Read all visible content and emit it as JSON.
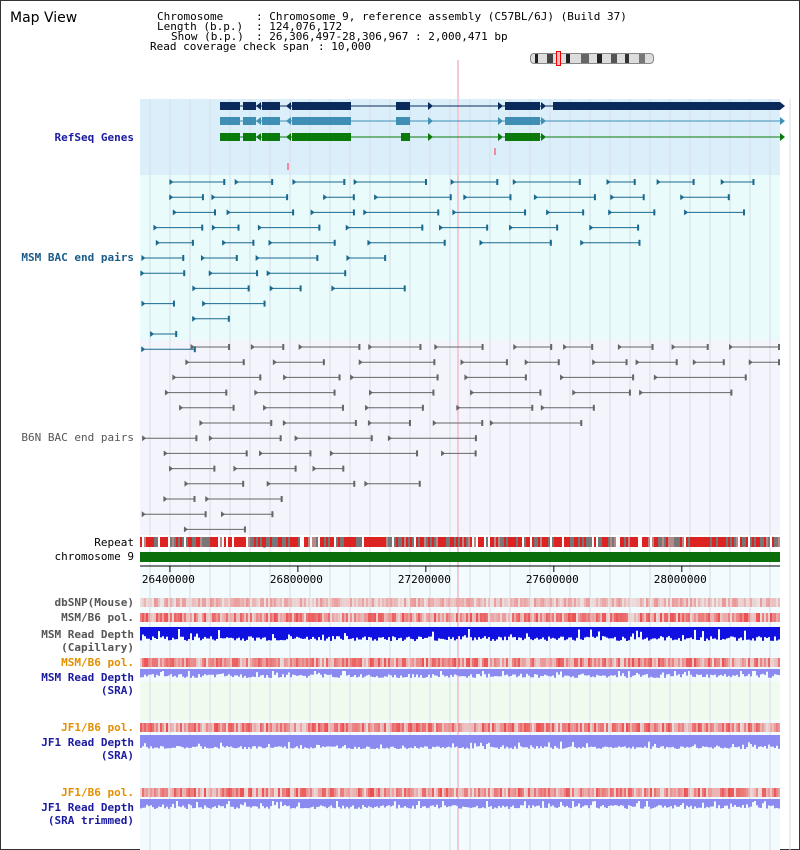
{
  "page": {
    "title": "Map View"
  },
  "info": {
    "chromosome_label": "Chromosome",
    "chromosome_value": "Chromosome 9, reference assembly (C57BL/6J) (Build 37)",
    "length_label": "Length (b.p.)",
    "length_value": "124,076,172",
    "show_label": "Show (b.p.)",
    "show_value": "26,306,497-28,306,967 : 2,000,471 bp",
    "coverage_label": "Read coverage check span",
    "coverage_value": "10,000"
  },
  "tracks": {
    "refseq": "RefSeq Genes",
    "msm_bac": "MSM BAC end pairs",
    "b6n_bac": "B6N BAC end pairs",
    "repeat": "Repeat",
    "chromosome": "chromosome 9",
    "dbsnp": "dbSNP(Mouse)",
    "msm_b6_pol": "MSM/B6 pol.",
    "msm_depth_cap_1": "MSM Read Depth",
    "msm_depth_cap_2": "(Capillary)",
    "msm_b6_pol_sra": "MSM/B6 pol.",
    "msm_depth_sra_1": "MSM Read Depth",
    "msm_depth_sra_2": "(SRA)",
    "jf1_b6_pol": "JF1/B6 pol.",
    "jf1_depth_1": "JF1 Read Depth",
    "jf1_depth_2": "(SRA)",
    "jf1_b6_pol_trim": "JF1/B6 pol.",
    "jf1_depth_trim_1": "JF1 Read Depth",
    "jf1_depth_trim_2": "(SRA trimmed)"
  },
  "axis": {
    "ticks": [
      {
        "label": "26400000",
        "value": 26400000
      },
      {
        "label": "26800000",
        "value": 26800000
      },
      {
        "label": "27200000",
        "value": 27200000
      },
      {
        "label": "27600000",
        "value": 27600000
      },
      {
        "label": "28000000",
        "value": 28000000
      }
    ]
  },
  "colors": {
    "refseq_bg": "#dbeffa",
    "msm_bg": "#e9fbfb",
    "b6n_bg": "#f4f4fc",
    "gene_navy": "#0a2a5c",
    "gene_teal": "#3f8fb5",
    "gene_green": "#0a7a0a",
    "msm_pair": "#1a6a90",
    "b6n_pair": "#666666",
    "chrom_green": "#0a6f0a",
    "depth_dark": "#1010e0",
    "depth_light": "#8a8af0",
    "pol_red": "#e83030"
  }
}
